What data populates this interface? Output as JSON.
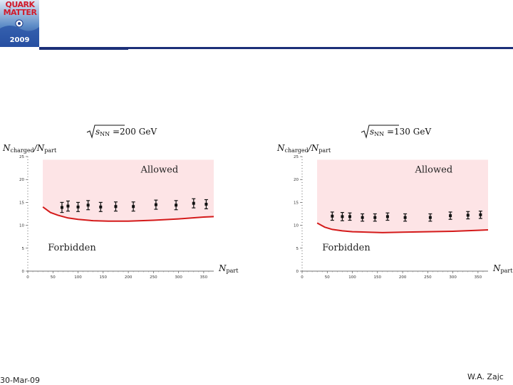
{
  "logo": {
    "wordmark_line1": "QUARK",
    "wordmark_line2": "MATTER",
    "year": "2009"
  },
  "footer": {
    "date": "30-Mar-09",
    "author": "W.A. Zajc"
  },
  "colors": {
    "accent": "#1c2f78",
    "allowed_fill": "#fde4e6",
    "boundary": "#d41a1a",
    "markers": "#111111"
  },
  "chart_data": [
    {
      "type": "scatter",
      "title_prefix": "s",
      "title_sub": "NN",
      "title_value": " =200 GeV",
      "ylabel": "N",
      "ylabel_sub": "charged",
      "ylabel_mid": "/N",
      "ylabel_sub2": "part",
      "xlabel": "N",
      "xlabel_sub": "part",
      "xlim": [
        0,
        370
      ],
      "ylim": [
        0,
        25
      ],
      "xticks": [
        "0",
        "50",
        "100",
        "150",
        "200",
        "250",
        "300",
        "350"
      ],
      "xtick_values": [
        0,
        50,
        100,
        150,
        200,
        250,
        300,
        350
      ],
      "yticks": [
        "0",
        "5",
        "10",
        "15",
        "20",
        "25"
      ],
      "ytick_values": [
        0,
        5,
        10,
        15,
        20,
        25
      ],
      "region_labels": {
        "upper": "Allowed",
        "lower": "Forbidden"
      },
      "boundary": {
        "x": [
          30,
          45,
          60,
          80,
          100,
          130,
          160,
          200,
          250,
          300,
          350,
          370
        ],
        "y": [
          14,
          12.8,
          12.2,
          11.6,
          11.3,
          11.0,
          10.9,
          10.9,
          11.1,
          11.4,
          11.8,
          11.9
        ]
      },
      "points": {
        "x": [
          68,
          80,
          100,
          120,
          145,
          175,
          210,
          255,
          295,
          330,
          355
        ],
        "y": [
          13.9,
          14.2,
          14.0,
          14.4,
          14.0,
          14.1,
          14.1,
          14.5,
          14.4,
          14.8,
          14.6
        ],
        "err": [
          1.1,
          1.1,
          1.0,
          1.0,
          1.0,
          1.0,
          1.0,
          1.0,
          1.0,
          1.0,
          1.0
        ]
      }
    },
    {
      "type": "scatter",
      "title_prefix": "s",
      "title_sub": "NN",
      "title_value": " =130 GeV",
      "ylabel": "N",
      "ylabel_sub": "charged",
      "ylabel_mid": "/N",
      "ylabel_sub2": "part",
      "xlabel": "N",
      "xlabel_sub": "part",
      "xlim": [
        0,
        370
      ],
      "ylim": [
        0,
        25
      ],
      "xticks": [
        "0",
        "50",
        "100",
        "150",
        "200",
        "250",
        "300",
        "350"
      ],
      "xtick_values": [
        0,
        50,
        100,
        150,
        200,
        250,
        300,
        350
      ],
      "yticks": [
        "0",
        "5",
        "10",
        "15",
        "20",
        "25"
      ],
      "ytick_values": [
        0,
        5,
        10,
        15,
        20,
        25
      ],
      "region_labels": {
        "upper": "Allowed",
        "lower": "Forbidden"
      },
      "boundary": {
        "x": [
          30,
          45,
          60,
          80,
          100,
          130,
          160,
          200,
          250,
          300,
          350,
          370
        ],
        "y": [
          10.5,
          9.6,
          9.1,
          8.8,
          8.6,
          8.5,
          8.4,
          8.5,
          8.6,
          8.7,
          8.9,
          9.0
        ]
      },
      "points": {
        "x": [
          60,
          80,
          95,
          120,
          145,
          170,
          205,
          255,
          295,
          330,
          355
        ],
        "y": [
          12.0,
          11.9,
          11.9,
          11.7,
          11.7,
          11.9,
          11.7,
          11.7,
          12.1,
          12.2,
          12.3
        ],
        "err": [
          0.9,
          0.9,
          0.8,
          0.8,
          0.8,
          0.8,
          0.8,
          0.8,
          0.8,
          0.8,
          0.8
        ]
      }
    }
  ]
}
